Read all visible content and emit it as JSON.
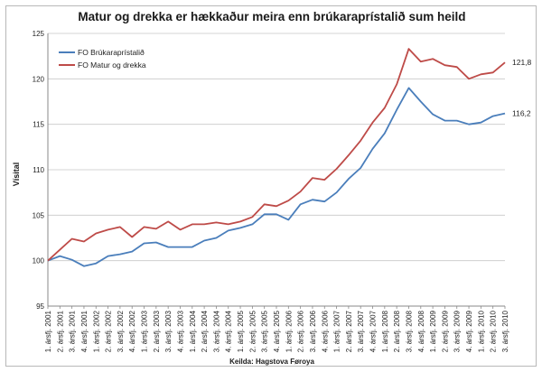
{
  "chart_data": {
    "type": "line",
    "title": "Matur og drekka er hækkaður meira enn brúkaraprístalið sum heild",
    "xlabel": "Keilda: Hagstova Føroya",
    "ylabel": "Vísital",
    "ylim": [
      95,
      125
    ],
    "yticks": [
      95,
      100,
      105,
      110,
      115,
      120,
      125
    ],
    "grid": true,
    "legend_position": "top-left",
    "categories": [
      "1. ársfj. 2001",
      "2. ársfj. 2001",
      "3. ársfj. 2001",
      "4. ársfj. 2001",
      "1. ársfj. 2002",
      "2. ársfj. 2002",
      "3. ársfj. 2002",
      "4. ársfj. 2002",
      "1. ársfj. 2003",
      "2. ársfj. 2003",
      "3. ársfj. 2003",
      "4. ársfj. 2003",
      "1. ársfj. 2004",
      "2. ársfj. 2004",
      "3. ársfj. 2004",
      "4. ársfj. 2004",
      "1. ársfj. 2005",
      "2. ársfj. 2005",
      "3. ársfj. 2005",
      "4. ársfj. 2005",
      "1. ársfj. 2006",
      "2. ársfj. 2006",
      "3. ársfj. 2006",
      "4. ársfj. 2006",
      "1. ársfj. 2007",
      "2. ársfj. 2007",
      "3. ársfj. 2007",
      "4. ársfj. 2007",
      "1. ársfj. 2008",
      "2. ársfj. 2008",
      "3. ársfj. 2008",
      "4. ársfj. 2008",
      "1. ársfj. 2009",
      "2. ársfj. 2009",
      "3. ársfj. 2009",
      "4. ársfj. 2009",
      "1. ársfj. 2010",
      "2. ársfj. 2010",
      "3. ársfj. 2010"
    ],
    "series": [
      {
        "name": "FO Brúkaraprístalið",
        "color": "#4a7ebb",
        "end_label": "116,2",
        "values": [
          100.0,
          100.5,
          100.1,
          99.4,
          99.7,
          100.5,
          100.7,
          101.0,
          101.9,
          102.0,
          101.5,
          101.5,
          101.5,
          102.2,
          102.5,
          103.3,
          103.6,
          104.0,
          105.1,
          105.1,
          104.5,
          106.2,
          106.7,
          106.5,
          107.5,
          109.0,
          110.2,
          112.3,
          114.0,
          116.6,
          119.0,
          117.5,
          116.1,
          115.4,
          115.4,
          115.0,
          115.2,
          115.9,
          116.2
        ]
      },
      {
        "name": "FO Matur og drekka",
        "color": "#be4b48",
        "end_label": "121,8",
        "values": [
          100.0,
          101.2,
          102.4,
          102.1,
          103.0,
          103.4,
          103.7,
          102.6,
          103.7,
          103.5,
          104.3,
          103.4,
          104.0,
          104.0,
          104.2,
          104.0,
          104.3,
          104.8,
          106.2,
          106.0,
          106.6,
          107.6,
          109.1,
          108.9,
          110.1,
          111.6,
          113.2,
          115.2,
          116.8,
          119.4,
          123.3,
          121.9,
          122.2,
          121.5,
          121.3,
          120.0,
          120.5,
          120.7,
          121.8
        ]
      }
    ]
  }
}
